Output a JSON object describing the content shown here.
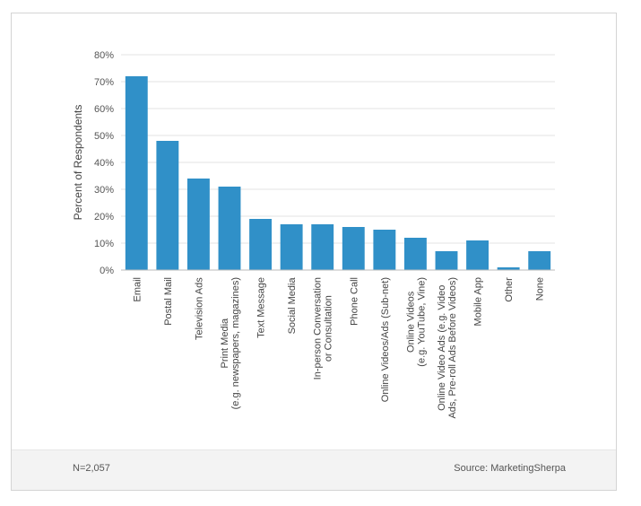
{
  "chart_data": {
    "type": "bar",
    "title": "",
    "xlabel": "",
    "ylabel": "Percent of Respondents",
    "ylim": [
      0,
      80
    ],
    "yticks": [
      "0%",
      "10%",
      "20%",
      "30%",
      "40%",
      "50%",
      "60%",
      "70%",
      "80%"
    ],
    "grid": true,
    "bar_color": "#3090c8",
    "categories": [
      [
        "Email"
      ],
      [
        "Postal Mail"
      ],
      [
        "Television Ads"
      ],
      [
        "Print Media",
        "(e.g. newspapers, magazines)"
      ],
      [
        "Text Message"
      ],
      [
        "Social Media"
      ],
      [
        "In-person Conversation",
        "or Consultation"
      ],
      [
        "Phone Call"
      ],
      [
        "Online Videos/Ads (Sub-net)"
      ],
      [
        "Online Videos",
        "(e.g. YouTube, Vine)"
      ],
      [
        "Online Video Ads (e.g. Video",
        "Ads, Pre-roll Ads Before Videos)"
      ],
      [
        "Mobile App"
      ],
      [
        "Other"
      ],
      [
        "None"
      ]
    ],
    "values": [
      72,
      48,
      34,
      31,
      19,
      17,
      17,
      16,
      15,
      12,
      7,
      11,
      1,
      7
    ]
  },
  "footer": {
    "note": "N=2,057",
    "source": "Source: MarketingSherpa"
  }
}
